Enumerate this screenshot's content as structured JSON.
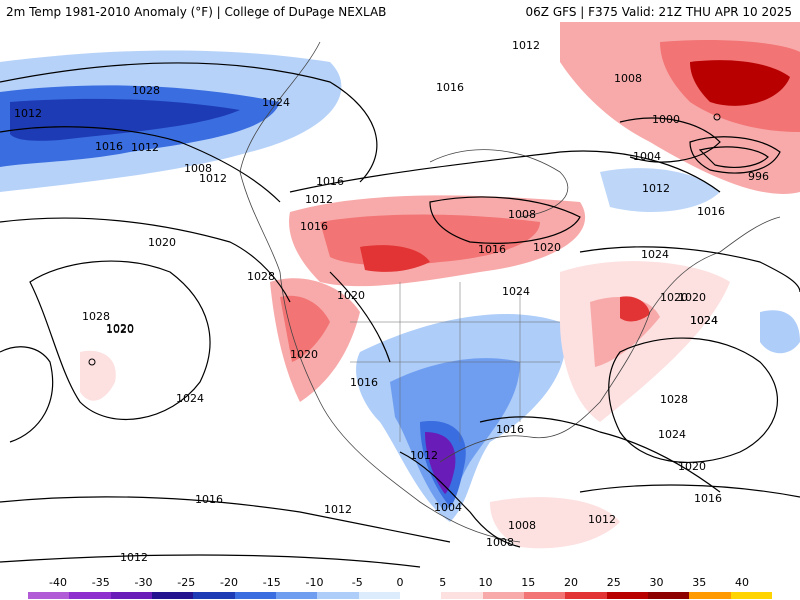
{
  "header": {
    "left_title": "2m Temp 1981-2010 Anomaly (°F) | College of DuPage NEXLAB",
    "right_title": "06Z GFS | F375 Valid: 21Z THU APR 10 2025"
  },
  "isobar_labels": [
    "1012",
    "1016",
    "1008",
    "1000",
    "1004",
    "996",
    "1012",
    "1016",
    "1024",
    "1020",
    "1024",
    "1020",
    "1028",
    "1024",
    "1016",
    "1012",
    "1008",
    "1012",
    "1016",
    "1012",
    "1016",
    "1020",
    "1028",
    "1020",
    "1016",
    "1012",
    "1008",
    "1016",
    "1020",
    "1020",
    "1024",
    "1028",
    "1020",
    "1024",
    "1020",
    "1016",
    "1012",
    "1004",
    "1008",
    "1012",
    "1016",
    "1020",
    "1024",
    "1028",
    "1024",
    "1008",
    "1012",
    "1016",
    "1012"
  ],
  "colorbar": {
    "ticks": [
      "-40",
      "-35",
      "-30",
      "-25",
      "-20",
      "-15",
      "-10",
      "-5",
      "0",
      "5",
      "10",
      "15",
      "20",
      "25",
      "30",
      "35",
      "40"
    ],
    "colors": [
      "#b25bd6",
      "#8f2ecf",
      "#6a1cb8",
      "#24138f",
      "#1d3bb5",
      "#3a6de0",
      "#6f9ef0",
      "#aecdf8",
      "#dcecfc",
      "#ffffff",
      "#fde0e0",
      "#f8aaaa",
      "#f27474",
      "#e23434",
      "#b80000",
      "#8c0000",
      "#ff9a00",
      "#ffd400"
    ]
  }
}
